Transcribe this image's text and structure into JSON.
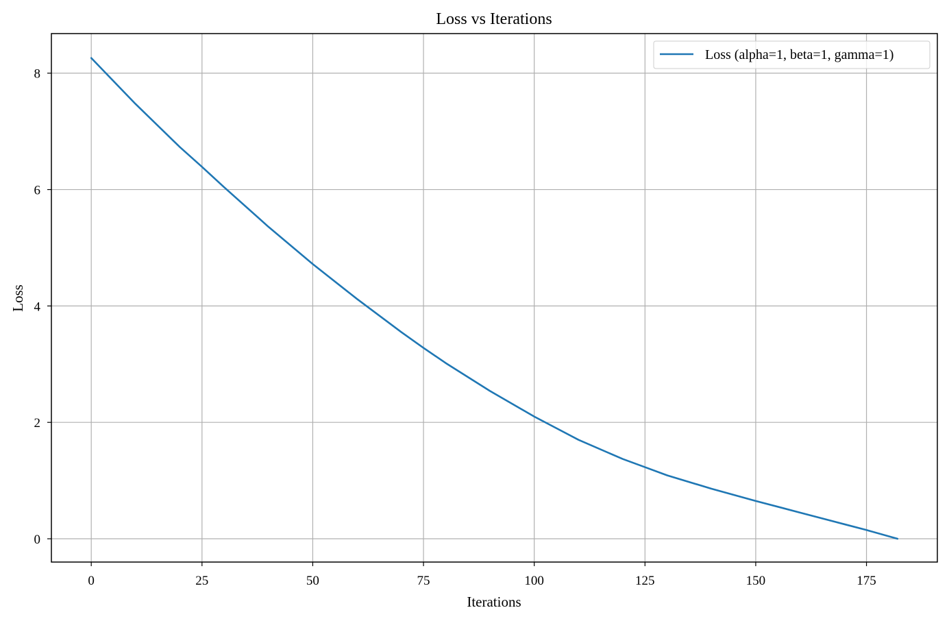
{
  "chart_data": {
    "type": "line",
    "title": "Loss vs Iterations",
    "xlabel": "Iterations",
    "ylabel": "Loss",
    "xlim": [
      -9,
      191
    ],
    "ylim": [
      -0.4,
      8.68
    ],
    "xticks": [
      0,
      25,
      50,
      75,
      100,
      125,
      150,
      175
    ],
    "yticks": [
      0,
      2,
      4,
      6,
      8
    ],
    "grid": true,
    "legend_position": "upper right",
    "series": [
      {
        "name": "Loss (alpha=1, beta=1, gamma=1)",
        "color": "#1f77b4",
        "x": [
          0,
          10,
          20,
          25,
          30,
          40,
          50,
          60,
          70,
          75,
          80,
          90,
          100,
          110,
          120,
          125,
          130,
          140,
          150,
          160,
          170,
          175,
          182
        ],
        "y": [
          8.26,
          7.47,
          6.73,
          6.39,
          6.04,
          5.36,
          4.72,
          4.12,
          3.55,
          3.28,
          3.02,
          2.54,
          2.1,
          1.7,
          1.37,
          1.23,
          1.09,
          0.86,
          0.65,
          0.45,
          0.25,
          0.15,
          0.0
        ]
      }
    ]
  }
}
